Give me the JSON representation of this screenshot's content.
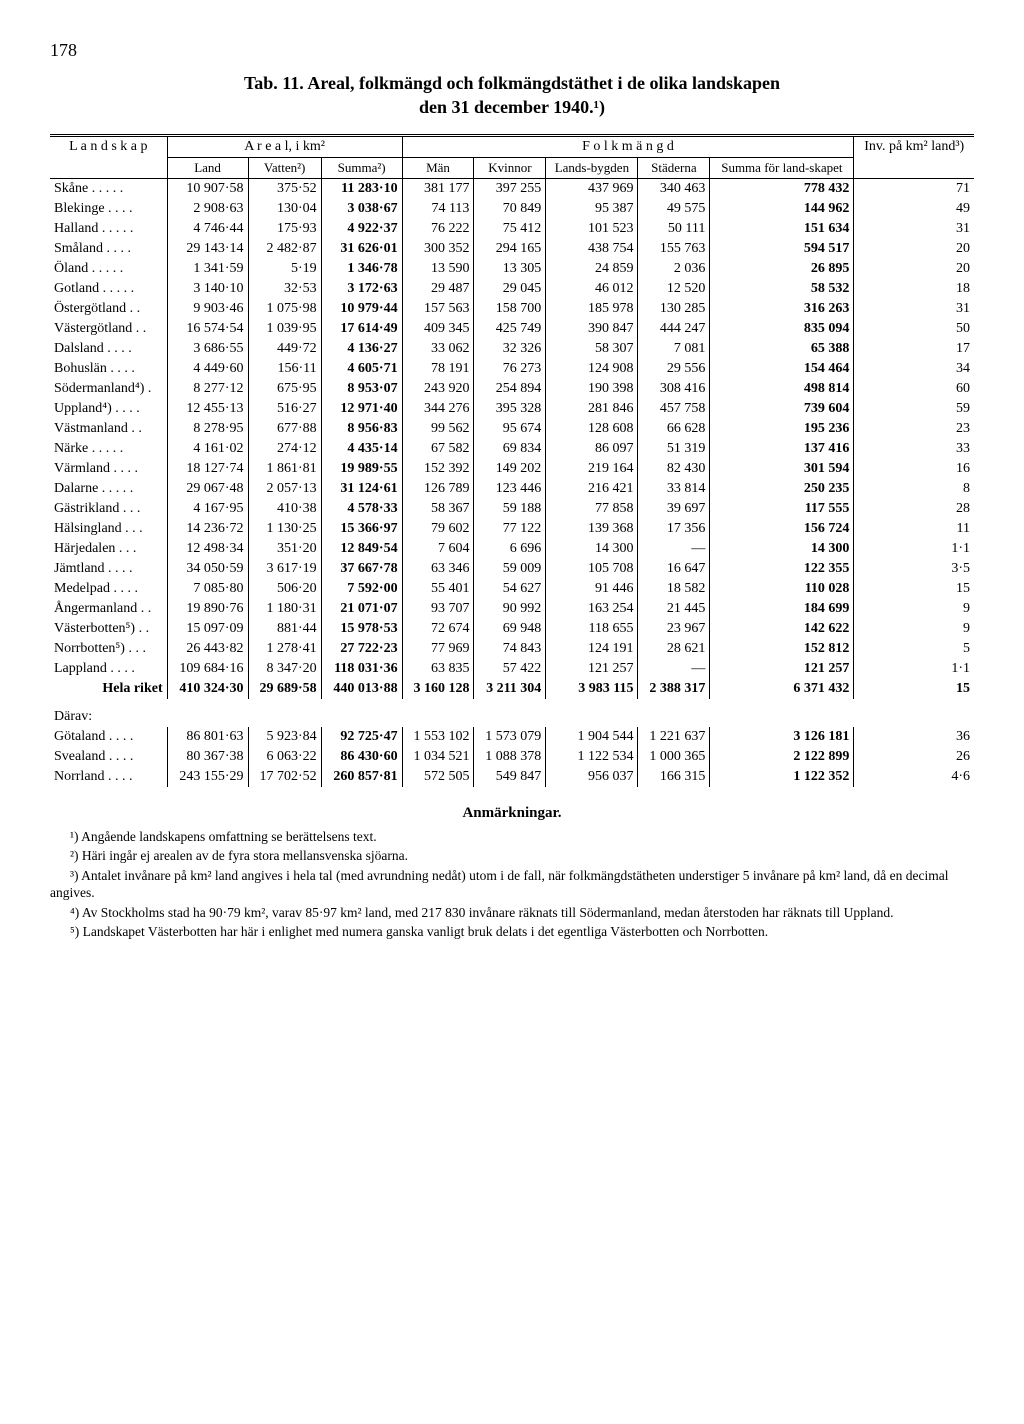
{
  "page_number": "178",
  "title_line1": "Tab. 11.  Areal, folkmängd och folkmängdstäthet i de olika landskapen",
  "title_line2": "den 31 december 1940.¹)",
  "headers": {
    "landskap": "L a n d s k a p",
    "areal": "A r e a l,  i km²",
    "folkmängd": "F o l k m ä n g d",
    "inv": "Inv. på km² land³)",
    "land": "Land",
    "vatten": "Vatten²)",
    "summa_areal": "Summa²)",
    "man": "Män",
    "kvinnor": "Kvinnor",
    "landsbygden": "Lands-bygden",
    "staderna": "Städerna",
    "summa_folk": "Summa för land-skapet"
  },
  "rows": [
    {
      "name": "Skåne . . . . .",
      "land": "10 907·58",
      "vatten": "375·52",
      "summa": "11 283·10",
      "man": "381 177",
      "kv": "397 255",
      "lb": "437 969",
      "st": "340 463",
      "sf": "778 432",
      "inv": "71"
    },
    {
      "name": "Blekinge . . . .",
      "land": "2 908·63",
      "vatten": "130·04",
      "summa": "3 038·67",
      "man": "74 113",
      "kv": "70 849",
      "lb": "95 387",
      "st": "49 575",
      "sf": "144 962",
      "inv": "49"
    },
    {
      "name": "Halland . . . . .",
      "land": "4 746·44",
      "vatten": "175·93",
      "summa": "4 922·37",
      "man": "76 222",
      "kv": "75 412",
      "lb": "101 523",
      "st": "50 111",
      "sf": "151 634",
      "inv": "31"
    },
    {
      "name": "Småland . . . .",
      "land": "29 143·14",
      "vatten": "2 482·87",
      "summa": "31 626·01",
      "man": "300 352",
      "kv": "294 165",
      "lb": "438 754",
      "st": "155 763",
      "sf": "594 517",
      "inv": "20"
    },
    {
      "name": "Öland . . . . .",
      "land": "1 341·59",
      "vatten": "5·19",
      "summa": "1 346·78",
      "man": "13 590",
      "kv": "13 305",
      "lb": "24 859",
      "st": "2 036",
      "sf": "26 895",
      "inv": "20"
    },
    {
      "name": "Gotland . . . . .",
      "land": "3 140·10",
      "vatten": "32·53",
      "summa": "3 172·63",
      "man": "29 487",
      "kv": "29 045",
      "lb": "46 012",
      "st": "12 520",
      "sf": "58 532",
      "inv": "18"
    },
    {
      "name": "Östergötland . .",
      "land": "9 903·46",
      "vatten": "1 075·98",
      "summa": "10 979·44",
      "man": "157 563",
      "kv": "158 700",
      "lb": "185 978",
      "st": "130 285",
      "sf": "316 263",
      "inv": "31"
    },
    {
      "name": "Västergötland . .",
      "land": "16 574·54",
      "vatten": "1 039·95",
      "summa": "17 614·49",
      "man": "409 345",
      "kv": "425 749",
      "lb": "390 847",
      "st": "444 247",
      "sf": "835 094",
      "inv": "50"
    },
    {
      "name": "Dalsland . . . .",
      "land": "3 686·55",
      "vatten": "449·72",
      "summa": "4 136·27",
      "man": "33 062",
      "kv": "32 326",
      "lb": "58 307",
      "st": "7 081",
      "sf": "65 388",
      "inv": "17"
    },
    {
      "name": "Bohuslän . . . .",
      "land": "4 449·60",
      "vatten": "156·11",
      "summa": "4 605·71",
      "man": "78 191",
      "kv": "76 273",
      "lb": "124 908",
      "st": "29 556",
      "sf": "154 464",
      "inv": "34"
    },
    {
      "name": "Södermanland⁴) .",
      "land": "8 277·12",
      "vatten": "675·95",
      "summa": "8 953·07",
      "man": "243 920",
      "kv": "254 894",
      "lb": "190 398",
      "st": "308 416",
      "sf": "498 814",
      "inv": "60"
    },
    {
      "name": "Uppland⁴) . . . .",
      "land": "12 455·13",
      "vatten": "516·27",
      "summa": "12 971·40",
      "man": "344 276",
      "kv": "395 328",
      "lb": "281 846",
      "st": "457 758",
      "sf": "739 604",
      "inv": "59"
    },
    {
      "name": "Västmanland . .",
      "land": "8 278·95",
      "vatten": "677·88",
      "summa": "8 956·83",
      "man": "99 562",
      "kv": "95 674",
      "lb": "128 608",
      "st": "66 628",
      "sf": "195 236",
      "inv": "23"
    },
    {
      "name": "Närke . . . . .",
      "land": "4 161·02",
      "vatten": "274·12",
      "summa": "4 435·14",
      "man": "67 582",
      "kv": "69 834",
      "lb": "86 097",
      "st": "51 319",
      "sf": "137 416",
      "inv": "33"
    },
    {
      "name": "Värmland . . . .",
      "land": "18 127·74",
      "vatten": "1 861·81",
      "summa": "19 989·55",
      "man": "152 392",
      "kv": "149 202",
      "lb": "219 164",
      "st": "82 430",
      "sf": "301 594",
      "inv": "16"
    },
    {
      "name": "Dalarne . . . . .",
      "land": "29 067·48",
      "vatten": "2 057·13",
      "summa": "31 124·61",
      "man": "126 789",
      "kv": "123 446",
      "lb": "216 421",
      "st": "33 814",
      "sf": "250 235",
      "inv": "8"
    },
    {
      "name": "Gästrikland . . .",
      "land": "4 167·95",
      "vatten": "410·38",
      "summa": "4 578·33",
      "man": "58 367",
      "kv": "59 188",
      "lb": "77 858",
      "st": "39 697",
      "sf": "117 555",
      "inv": "28"
    },
    {
      "name": "Hälsingland . . .",
      "land": "14 236·72",
      "vatten": "1 130·25",
      "summa": "15 366·97",
      "man": "79 602",
      "kv": "77 122",
      "lb": "139 368",
      "st": "17 356",
      "sf": "156 724",
      "inv": "11"
    },
    {
      "name": "Härjedalen . . .",
      "land": "12 498·34",
      "vatten": "351·20",
      "summa": "12 849·54",
      "man": "7 604",
      "kv": "6 696",
      "lb": "14 300",
      "st": "—",
      "sf": "14 300",
      "inv": "1·1"
    },
    {
      "name": "Jämtland . . . .",
      "land": "34 050·59",
      "vatten": "3 617·19",
      "summa": "37 667·78",
      "man": "63 346",
      "kv": "59 009",
      "lb": "105 708",
      "st": "16 647",
      "sf": "122 355",
      "inv": "3·5"
    },
    {
      "name": "Medelpad . . . .",
      "land": "7 085·80",
      "vatten": "506·20",
      "summa": "7 592·00",
      "man": "55 401",
      "kv": "54 627",
      "lb": "91 446",
      "st": "18 582",
      "sf": "110 028",
      "inv": "15"
    },
    {
      "name": "Ångermanland . .",
      "land": "19 890·76",
      "vatten": "1 180·31",
      "summa": "21 071·07",
      "man": "93 707",
      "kv": "90 992",
      "lb": "163 254",
      "st": "21 445",
      "sf": "184 699",
      "inv": "9"
    },
    {
      "name": "Västerbotten⁵) . .",
      "land": "15 097·09",
      "vatten": "881·44",
      "summa": "15 978·53",
      "man": "72 674",
      "kv": "69 948",
      "lb": "118 655",
      "st": "23 967",
      "sf": "142 622",
      "inv": "9"
    },
    {
      "name": "Norrbotten⁵) . . .",
      "land": "26 443·82",
      "vatten": "1 278·41",
      "summa": "27 722·23",
      "man": "77 969",
      "kv": "74 843",
      "lb": "124 191",
      "st": "28 621",
      "sf": "152 812",
      "inv": "5"
    },
    {
      "name": "Lappland . . . .",
      "land": "109 684·16",
      "vatten": "8 347·20",
      "summa": "118 031·36",
      "man": "63 835",
      "kv": "57 422",
      "lb": "121 257",
      "st": "—",
      "sf": "121 257",
      "inv": "1·1"
    }
  ],
  "hela_riket": {
    "name": "Hela riket",
    "land": "410 324·30",
    "vatten": "29 689·58",
    "summa": "440 013·88",
    "man": "3 160 128",
    "kv": "3 211 304",
    "lb": "3 983 115",
    "st": "2 388 317",
    "sf": "6 371 432",
    "inv": "15"
  },
  "darav_label": "Därav:",
  "darav": [
    {
      "name": "Götaland . . . .",
      "land": "86 801·63",
      "vatten": "5 923·84",
      "summa": "92 725·47",
      "man": "1 553 102",
      "kv": "1 573 079",
      "lb": "1 904 544",
      "st": "1 221 637",
      "sf": "3 126 181",
      "inv": "36"
    },
    {
      "name": "Svealand . . . .",
      "land": "80 367·38",
      "vatten": "6 063·22",
      "summa": "86 430·60",
      "man": "1 034 521",
      "kv": "1 088 378",
      "lb": "1 122 534",
      "st": "1 000 365",
      "sf": "2 122 899",
      "inv": "26"
    },
    {
      "name": "Norrland . . . .",
      "land": "243 155·29",
      "vatten": "17 702·52",
      "summa": "260 857·81",
      "man": "572 505",
      "kv": "549 847",
      "lb": "956 037",
      "st": "166 315",
      "sf": "1 122 352",
      "inv": "4·6"
    }
  ],
  "anm_title": "Anmärkningar.",
  "notes": [
    "¹) Angående landskapens omfattning se berättelsens text.",
    "²) Häri ingår ej arealen av de fyra stora mellansvenska sjöarna.",
    "³) Antalet invånare på km² land angives i hela tal (med avrundning nedåt) utom i de fall, när folkmängdstätheten understiger 5 invånare på km² land, då en decimal angives.",
    "⁴) Av Stockholms stad ha 90·79 km², varav 85·97 km² land, med 217 830 invånare räknats till Södermanland, medan återstoden har räknats till Uppland.",
    "⁵) Landskapet Västerbotten har här i enlighet med numera ganska vanligt bruk delats i det egentliga Västerbotten och Norrbotten."
  ]
}
